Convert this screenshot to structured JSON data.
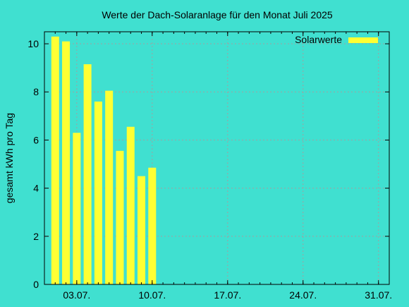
{
  "chart_data": {
    "type": "bar",
    "title": "Werte der Dach-Solaranlage für den Monat Juli 2025",
    "xlabel": "",
    "ylabel": "gesamt kWh pro Tag",
    "x_dates": [
      "01.07.",
      "02.07.",
      "03.07.",
      "04.07.",
      "05.07.",
      "06.07.",
      "07.07.",
      "08.07.",
      "09.07.",
      "10.07."
    ],
    "series": [
      {
        "name": "Solarwerte",
        "values": [
          10.3,
          10.1,
          6.3,
          9.15,
          7.6,
          8.05,
          5.55,
          6.55,
          4.5,
          4.85
        ]
      }
    ],
    "x_range": [
      "30.06.",
      "01.08."
    ],
    "x_ticks": [
      "03.07.",
      "10.07.",
      "17.07.",
      "24.07.",
      "31.07."
    ],
    "ylim": [
      0,
      10.5
    ],
    "y_ticks": [
      0,
      2,
      4,
      6,
      8,
      10
    ],
    "grid": true,
    "legend_position": "top-right",
    "colors": {
      "background": "#40e0d0",
      "bar": "#ffff33",
      "grid": "#a0a0a0",
      "axis": "#000000"
    }
  }
}
